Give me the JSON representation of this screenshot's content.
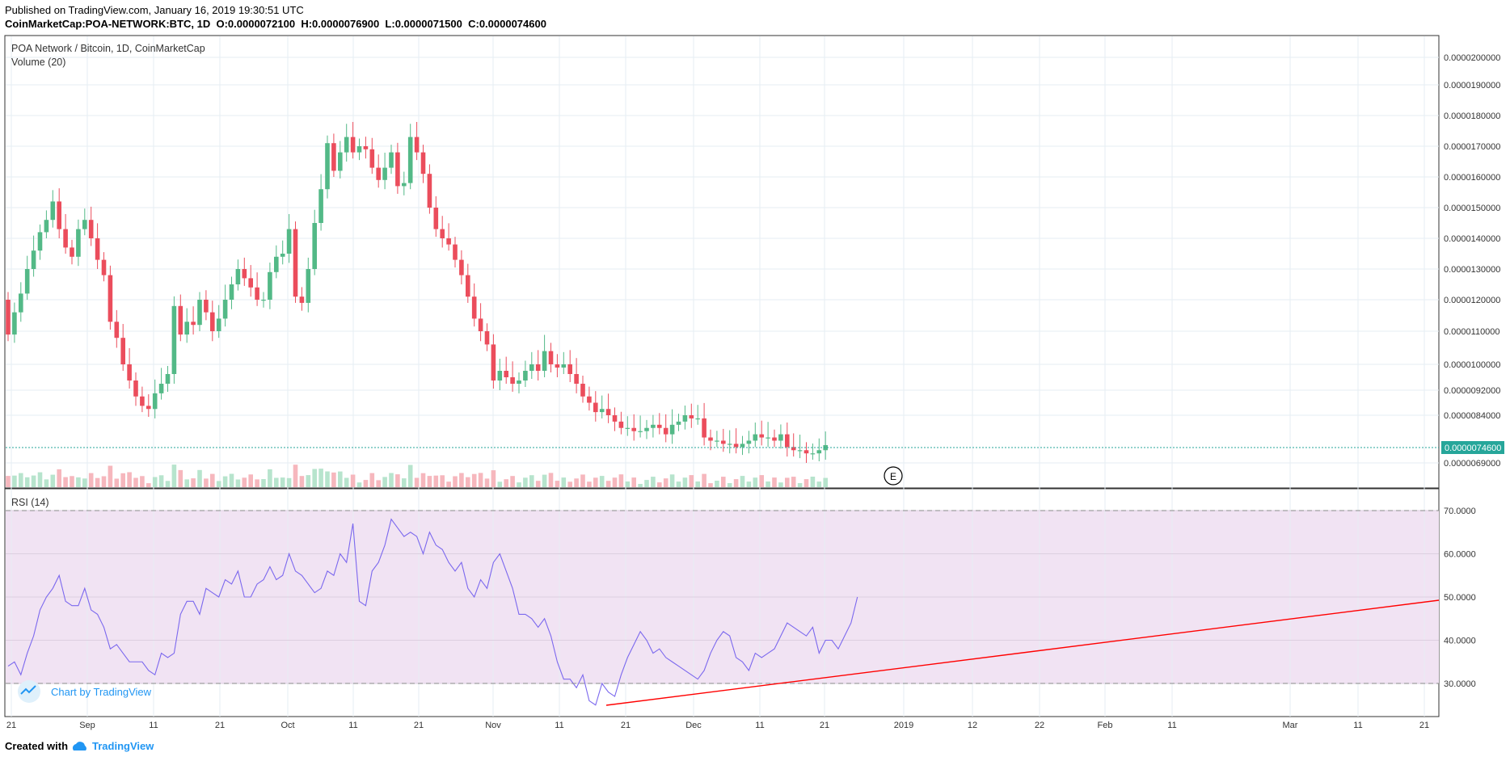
{
  "header": {
    "published": "Published on TradingView.com, January 16, 2019 19:30:51 UTC",
    "symbol": "CoinMarketCap:POA-NETWORK:BTC, 1D",
    "o_label": "O:",
    "o_value": "0.0000072100",
    "h_label": "H:",
    "h_value": "0.0000076900",
    "l_label": "L:",
    "l_value": "0.0000071500",
    "c_label": "C:",
    "c_value": "0.0000074600"
  },
  "footer": {
    "created_with": "Created with",
    "brand": "TradingView"
  },
  "watermark": "Chart by TradingView",
  "colors": {
    "up": "#53b987",
    "down": "#eb4d5c",
    "rsi": "#7b68ee",
    "trend": "#ff0000",
    "rsi_band": "#f1e3f3",
    "last_price": "#26a69a"
  },
  "chart_data": [
    {
      "type": "candlestick",
      "title": "POA Network / Bitcoin, 1D, CoinMarketCap",
      "indicator": "Volume (20)",
      "y_ticks": [
        "0.0000200000",
        "0.0000190000",
        "0.0000180000",
        "0.0000170000",
        "0.0000160000",
        "0.0000150000",
        "0.0000140000",
        "0.0000130000",
        "0.0000120000",
        "0.0000110000",
        "0.0000100000",
        "0.0000092000",
        "0.0000084000",
        "0.0000069000"
      ],
      "last_price": "0.0000074600",
      "x_ticks": [
        "21",
        "Sep",
        "11",
        "21",
        "Oct",
        "11",
        "21",
        "Nov",
        "11",
        "21",
        "Dec",
        "11",
        "21",
        "2019",
        "12",
        "22",
        "Feb",
        "11",
        "Mar",
        "11",
        "21"
      ],
      "event_marker": "E",
      "closes": [
        10.9,
        11.6,
        12.2,
        13.0,
        13.6,
        14.2,
        14.6,
        15.2,
        14.3,
        13.7,
        13.4,
        14.3,
        14.6,
        14.0,
        13.3,
        12.8,
        11.3,
        10.8,
        10.0,
        9.5,
        9.0,
        8.7,
        8.6,
        9.1,
        9.4,
        9.7,
        11.8,
        10.9,
        11.3,
        11.2,
        12.0,
        11.6,
        11.0,
        11.4,
        12.0,
        12.5,
        13.0,
        12.7,
        12.4,
        12.0,
        12.0,
        12.9,
        13.4,
        13.5,
        14.3,
        12.1,
        11.9,
        13.0,
        14.5,
        15.6,
        17.1,
        16.2,
        16.8,
        17.3,
        16.8,
        17.0,
        16.9,
        16.3,
        15.9,
        16.3,
        16.8,
        15.7,
        15.8,
        17.3,
        16.8,
        16.1,
        15.0,
        14.3,
        14.0,
        13.8,
        13.3,
        12.8,
        12.1,
        11.4,
        11.0,
        10.6,
        9.5,
        9.8,
        9.6,
        9.4,
        9.5,
        9.8,
        10.0,
        9.8,
        10.4,
        10.0,
        9.9,
        10.0,
        9.7,
        9.4,
        9.0,
        8.8,
        8.5,
        8.6,
        8.4,
        8.2,
        8.0,
        8.0,
        7.9,
        7.9,
        8.0,
        8.1,
        8.0,
        7.8,
        8.1,
        8.2,
        8.4,
        8.3,
        8.3,
        7.7,
        7.6,
        7.6,
        7.5,
        7.5,
        7.4,
        7.5,
        7.6,
        7.8,
        7.7,
        7.7,
        7.6,
        7.8,
        7.4,
        7.3,
        7.3,
        7.2,
        7.2,
        7.3,
        7.46
      ],
      "date_range": [
        "2018-08-21",
        "2019-01-16"
      ]
    },
    {
      "type": "line",
      "title": "RSI (14)",
      "y_ticks": [
        "70.0000",
        "60.0000",
        "50.0000",
        "40.0000",
        "30.0000"
      ],
      "ylim": [
        22,
        72
      ],
      "bands": [
        30,
        70
      ],
      "values": [
        34,
        35,
        32,
        37,
        41,
        47,
        50,
        52,
        55,
        49,
        48,
        48,
        52,
        47,
        46,
        43,
        38,
        39,
        37,
        35,
        35,
        35,
        33,
        32,
        37,
        36,
        37,
        46,
        49,
        49,
        46,
        52,
        51,
        50,
        54,
        53,
        56,
        50,
        50,
        53,
        54,
        57,
        54,
        55,
        60,
        56,
        55,
        53,
        51,
        52,
        56,
        55,
        60,
        58,
        67,
        49,
        48,
        56,
        58,
        62,
        68,
        66,
        64,
        65,
        64,
        60,
        65,
        62,
        61,
        58,
        56,
        58,
        52,
        50,
        54,
        52,
        58,
        60,
        56,
        52,
        46,
        46,
        45,
        43,
        45,
        41,
        35,
        31,
        31,
        29,
        32,
        26,
        25,
        30,
        28,
        27,
        32,
        36,
        39,
        42,
        40,
        37,
        38,
        36,
        35,
        34,
        33,
        32,
        31,
        33,
        37,
        40,
        42,
        41,
        36,
        35,
        33,
        37,
        36,
        37,
        38,
        41,
        44,
        43,
        42,
        41,
        43,
        37,
        40,
        40,
        38,
        41,
        44,
        50
      ]
    }
  ]
}
